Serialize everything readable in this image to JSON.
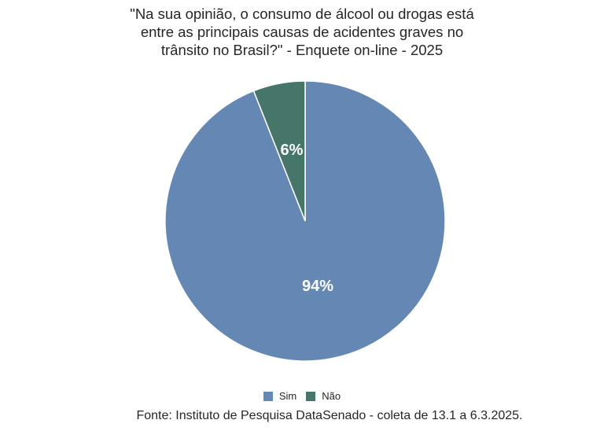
{
  "chart_data": {
    "type": "pie",
    "title_lines": [
      "\"Na sua opinião, o consumo de álcool ou drogas está",
      "entre as principais causas de acidentes graves no",
      "trânsito no Brasil?\" - Enquete on-line - 2025"
    ],
    "slices": [
      {
        "label": "Sim",
        "value": 94,
        "display": "94%",
        "color": "#6488b3"
      },
      {
        "label": "Não",
        "value": 6,
        "display": "6%",
        "color": "#46766a"
      }
    ],
    "legend_position": "bottom",
    "source": "Fonte: Instituto de Pesquisa DataSenado - coleta de 13.1 a 6.3.2025."
  }
}
